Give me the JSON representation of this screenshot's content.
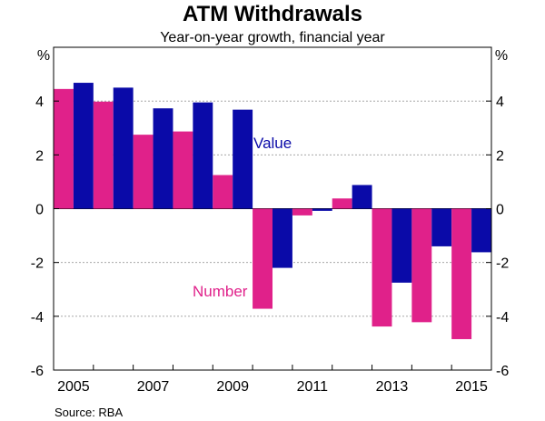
{
  "chart_data": {
    "type": "bar",
    "title": "ATM Withdrawals",
    "subtitle": "Year-on-year growth, financial year",
    "ylabel_left": "%",
    "ylabel_right": "%",
    "ylim": [
      -6,
      6
    ],
    "yticks": [
      "-6",
      "-4",
      "-2",
      "0",
      "2",
      "4"
    ],
    "ytick_values": [
      -6,
      -4,
      -2,
      0,
      2,
      4
    ],
    "categories": [
      "2005",
      "2006",
      "2007",
      "2008",
      "2009",
      "2010",
      "2011",
      "2012",
      "2013",
      "2014",
      "2015"
    ],
    "xtick_labels": [
      "2005",
      "2007",
      "2009",
      "2011",
      "2013",
      "2015"
    ],
    "xtick_indices": [
      0,
      2,
      4,
      6,
      8,
      10
    ],
    "series": [
      {
        "name": "Number",
        "color": "#e0218a",
        "values": [
          4.45,
          3.98,
          2.75,
          2.87,
          1.25,
          -3.72,
          -0.25,
          0.38,
          -4.38,
          -4.22,
          -4.85
        ]
      },
      {
        "name": "Value",
        "color": "#0a0aa8",
        "values": [
          4.68,
          4.5,
          3.73,
          3.95,
          3.68,
          -2.2,
          -0.08,
          0.88,
          -2.75,
          -1.4,
          -1.62
        ]
      }
    ],
    "annotations": [
      {
        "text": "Value",
        "series": "Value"
      },
      {
        "text": "Number",
        "series": "Number"
      }
    ],
    "source": "Source:    RBA"
  }
}
